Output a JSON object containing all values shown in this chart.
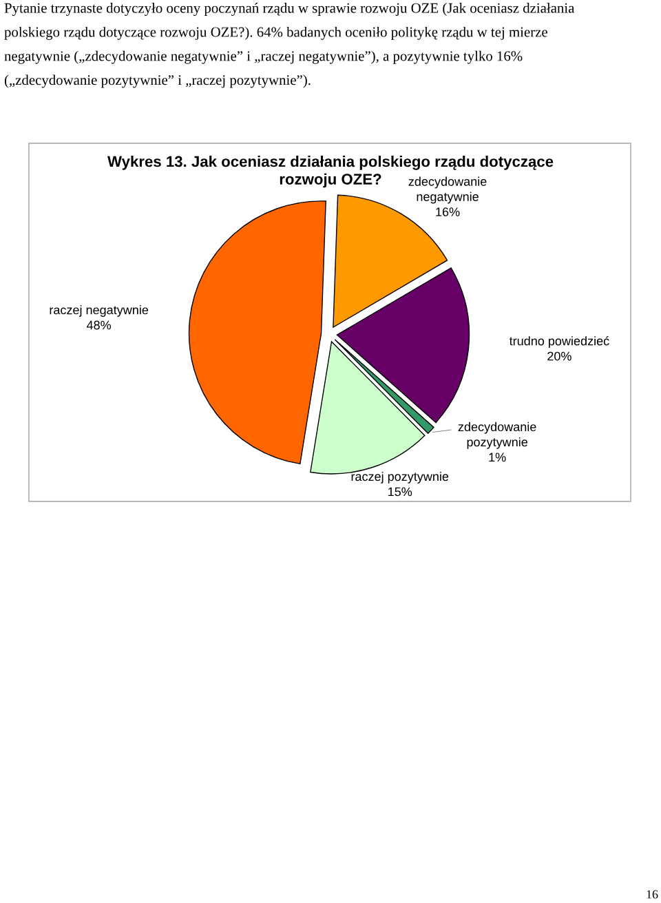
{
  "chart_data": {
    "type": "pie",
    "title": "Wykres 13. Jak oceniasz działania polskiego rządu dotyczące\nrozwoju OZE?",
    "categories": [
      "zdecydowanie\nnegatywnie",
      "trudno powiedzieć",
      "zdecydowanie\npozytywnie",
      "raczej pozytywnie",
      "raczej negatywnie"
    ],
    "values": [
      16,
      20,
      1,
      15,
      48
    ],
    "colors": [
      "#ff9900",
      "#660066",
      "#339966",
      "#ccffcc",
      "#ff6600"
    ],
    "value_labels": [
      "16%",
      "20%",
      "1%",
      "15%",
      "48%"
    ],
    "annotations": [
      "Pytanie trzynaste dotyczyło oceny poczynań rządu w sprawie rozwoju OZE (Jak oceniasz działania\npolskiego rządu dotyczące rozwoju OZE?). 64% badanych oceniło politykę rządu w tej mierze\nnegatywnie („zdecydowanie negatywnie” i „raczej negatywnie”), a pozytywnie tylko 16%\n(„zdecydowanie pozytywnie” i „raczej pozytywnie”).",
      "16"
    ]
  }
}
